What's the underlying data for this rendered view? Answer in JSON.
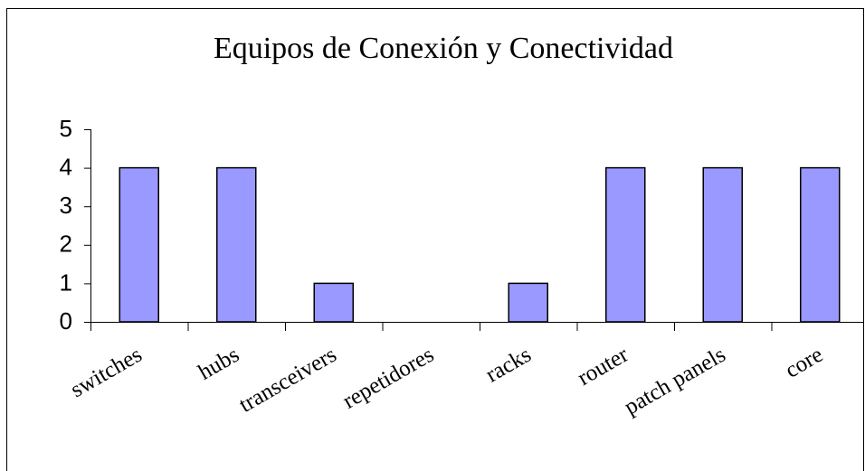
{
  "chart_data": {
    "type": "bar",
    "title": "Equipos de Conexión y Conectividad",
    "categories": [
      "switches",
      "hubs",
      "transceivers",
      "repetidores",
      "racks",
      "router",
      "patch panels",
      "core"
    ],
    "values": [
      4,
      4,
      1,
      0,
      1,
      4,
      4,
      4
    ],
    "color": "#9999ff",
    "ylim": [
      0,
      5
    ],
    "yticks": [
      0,
      1,
      2,
      3,
      4,
      5
    ],
    "grid": false
  }
}
